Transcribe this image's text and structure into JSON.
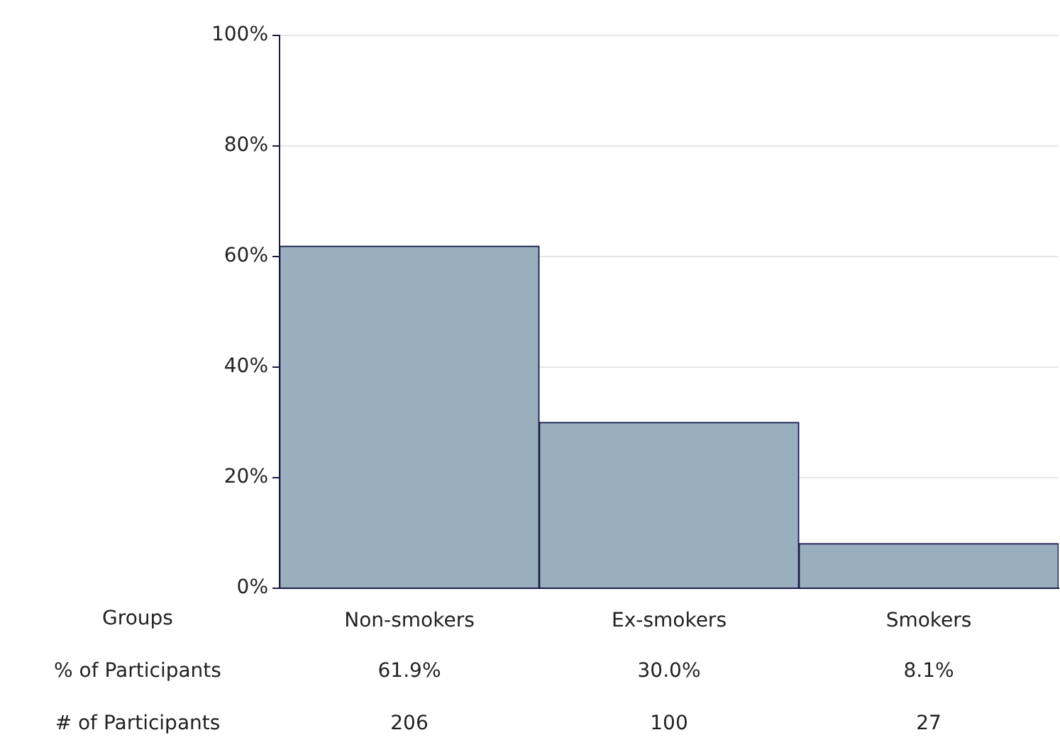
{
  "chart_data": {
    "type": "bar",
    "xlabel": "Groups",
    "categories": [
      "Non-smokers",
      "Ex-smokers",
      "Smokers"
    ],
    "series": [
      {
        "color": "#9aafbe",
        "values": [
          61.9,
          30.0,
          8.1
        ],
        "value_labels": [
          "61.9%",
          "30.0%",
          "8.1%"
        ]
      }
    ],
    "ylim": [
      0,
      100
    ],
    "yticks": [
      {
        "value": 0,
        "label": "0%"
      },
      {
        "value": 20,
        "label": "20%"
      },
      {
        "value": 40,
        "label": "40%"
      },
      {
        "value": 60,
        "label": "60%"
      },
      {
        "value": 80,
        "label": "80%"
      },
      {
        "value": 100,
        "label": "100%"
      }
    ],
    "grid": "y",
    "legend": false,
    "annotations": [
      "% of Participants",
      "# of Participants",
      "206",
      "100",
      "27"
    ]
  }
}
